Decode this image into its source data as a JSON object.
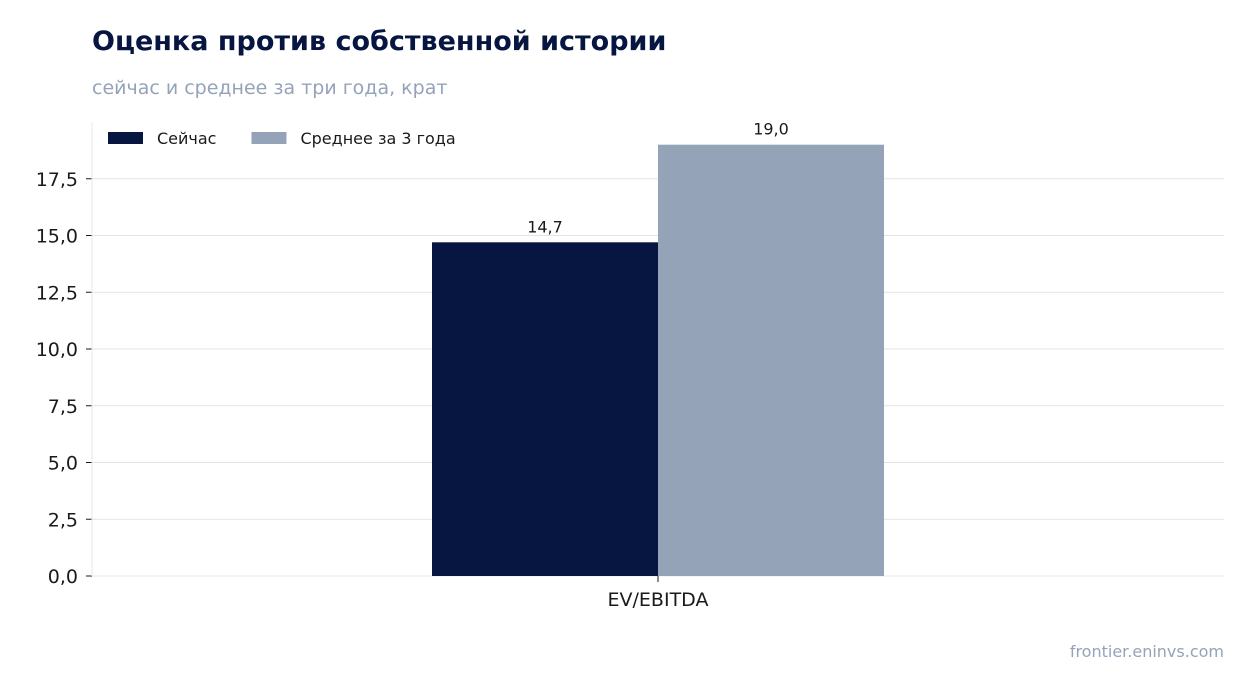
{
  "title": "Оценка против собственной истории",
  "subtitle": "сейчас и среднее за три года, крат",
  "source": "frontier.eninvs.com",
  "chart_data": {
    "type": "bar",
    "categories": [
      "EV/EBITDA"
    ],
    "series": [
      {
        "name": "Сейчас",
        "values": [
          14.7
        ],
        "labels": [
          "14,7"
        ],
        "color": "#061641"
      },
      {
        "name": "Среднее за 3 года",
        "values": [
          19.0
        ],
        "labels": [
          "19,0"
        ],
        "color": "#95a3b8"
      }
    ],
    "ylim": [
      0,
      20
    ],
    "yticks": [
      0,
      2.5,
      5,
      7.5,
      10,
      12.5,
      15,
      17.5
    ],
    "ytick_labels": [
      "0,0",
      "2,5",
      "5,0",
      "7,5",
      "10,0",
      "12,5",
      "15,0",
      "17,5"
    ],
    "grid": true,
    "legend_position": "top-left"
  }
}
